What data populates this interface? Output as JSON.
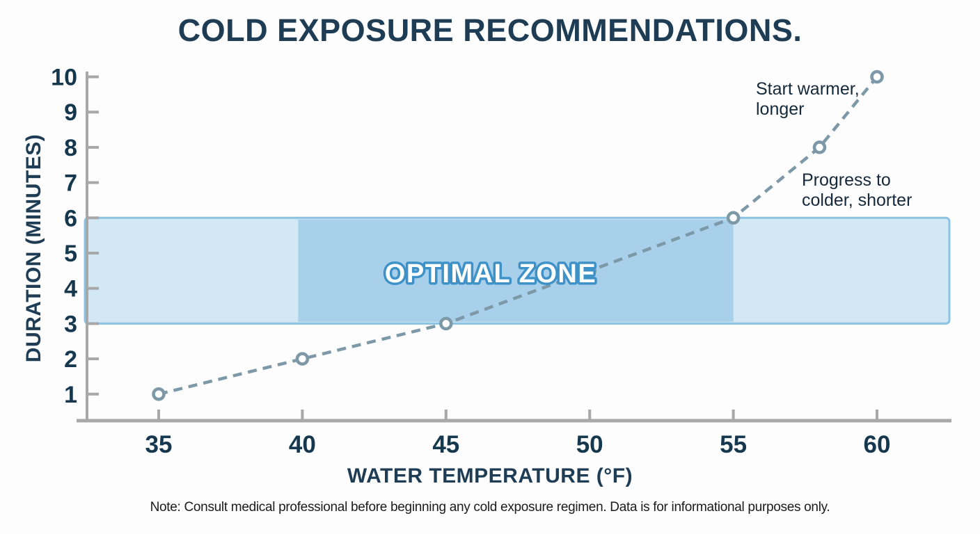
{
  "title": "COLD EXPOSURE RECOMMENDATIONS.",
  "note": "Note: Consult medical professional before beginning any cold exposure regimen. Data is for informational purposes only.",
  "chart_data": {
    "type": "line",
    "title": "COLD EXPOSURE RECOMMENDATIONS.",
    "xlabel": "WATER TEMPERATURE (°F)",
    "ylabel": "DURATION (MINUTES)",
    "x_ticks": [
      35,
      40,
      45,
      50,
      55,
      60
    ],
    "y_ticks": [
      1,
      2,
      3,
      4,
      5,
      6,
      7,
      8,
      9,
      10
    ],
    "xlim": [
      32,
      62.5
    ],
    "ylim": [
      0,
      10.2
    ],
    "grid": false,
    "line_style": "dashed",
    "marker": "open-circle",
    "points": [
      {
        "x": 35,
        "y": 1
      },
      {
        "x": 40,
        "y": 2
      },
      {
        "x": 45,
        "y": 3
      },
      {
        "x": 50,
        "y": 4.5
      },
      {
        "x": 55,
        "y": 6
      },
      {
        "x": 58,
        "y": 8
      },
      {
        "x": 60,
        "y": 10
      }
    ],
    "optimal_zone": {
      "label": "OPTIMAL ZONE",
      "y_range": [
        3,
        6
      ],
      "band_x_range": [
        32.4,
        62.5
      ],
      "core_x_range": [
        40,
        55
      ]
    },
    "annotations": [
      {
        "text": "Start warmer,\nlonger",
        "near_point": {
          "x": 60,
          "y": 10
        }
      },
      {
        "text": "Progress to\ncolder, shorter",
        "near_point": {
          "x": 58,
          "y": 8
        }
      }
    ],
    "colors": {
      "title": "#1E3D55",
      "tick_label": "#16384F",
      "line": "#7D99A8",
      "axis": "#A8A8A8",
      "zone_band": "#D3E8F5",
      "zone_border": "#8DC3E2",
      "zone_core": "#A9D0EA",
      "zone_text": "#FFFFFF",
      "zone_outline": "#3E92C8",
      "annotation": "#16293A",
      "note": "#1B1B1B"
    }
  }
}
